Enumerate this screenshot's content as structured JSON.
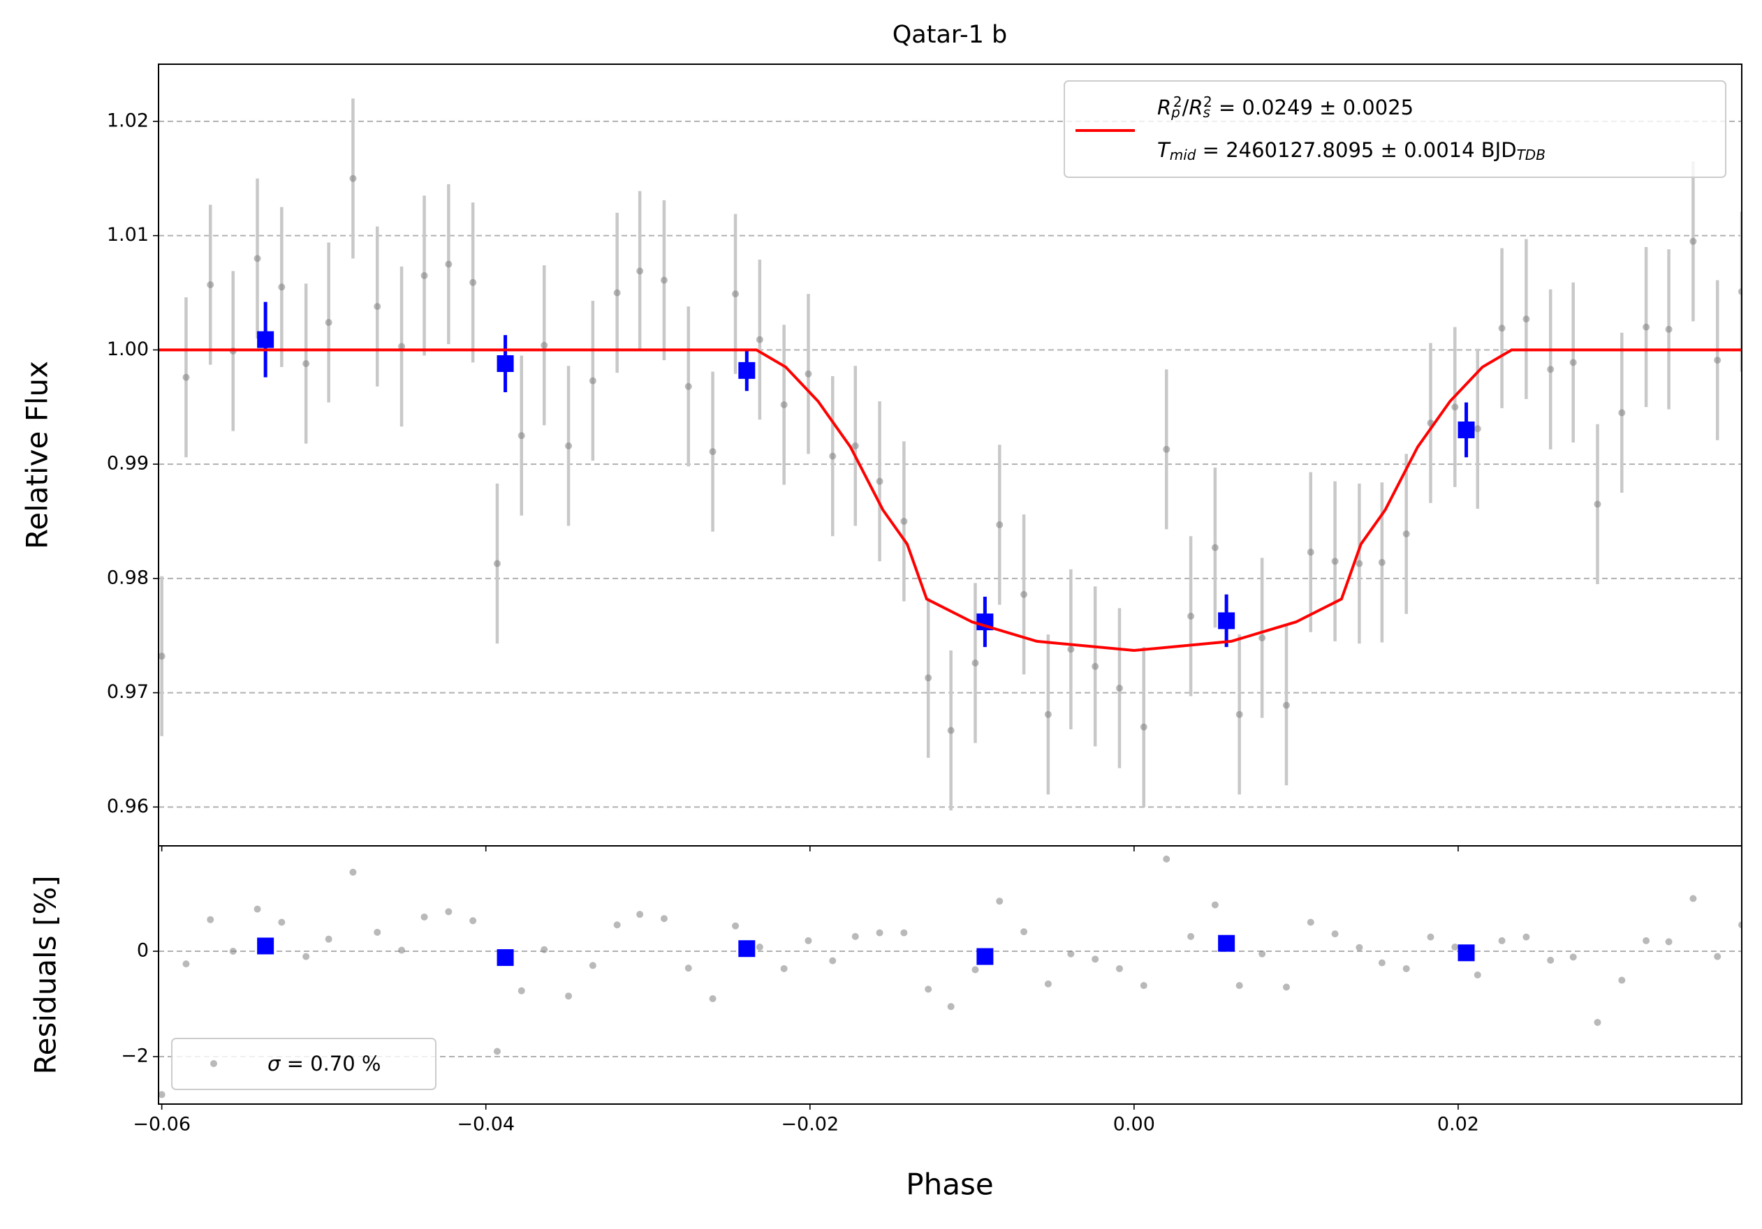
{
  "chart_data": [
    {
      "type": "errorbar",
      "title": "Qatar-1 b",
      "ylabel": "Relative Flux",
      "xlim": [
        -0.0602,
        0.0375
      ],
      "ylim": [
        0.9566,
        1.025
      ],
      "yticks": [
        0.96,
        0.97,
        0.98,
        0.99,
        {
          "value": 1.0,
          "label": "1.00"
        },
        1.01,
        1.02
      ],
      "grid": true,
      "legend": "upper right",
      "series": [
        {
          "mode": "points",
          "color": "#808080",
          "error": 0.007,
          "x": [
            -0.06,
            -0.0585,
            -0.057,
            -0.0556,
            -0.0541,
            -0.0526,
            -0.0511,
            -0.0497,
            -0.0482,
            -0.0467,
            -0.0452,
            -0.0438,
            -0.0423,
            -0.0408,
            -0.0393,
            -0.0378,
            -0.0364,
            -0.0349,
            -0.0334,
            -0.0319,
            -0.0305,
            -0.029,
            -0.0275,
            -0.026,
            -0.0246,
            -0.0231,
            -0.0216,
            -0.0201,
            -0.0186,
            -0.0172,
            -0.0157,
            -0.0142,
            -0.0127,
            -0.0113,
            -0.0098,
            -0.0083,
            -0.0068,
            -0.0053,
            -0.0039,
            -0.0024,
            -0.0009,
            0.0006,
            0.002,
            0.0035,
            0.005,
            0.0065,
            0.0079,
            0.0094,
            0.0109,
            0.0124,
            0.0139,
            0.0153,
            0.0168,
            0.0183,
            0.0198,
            0.0212,
            0.0227,
            0.0242,
            0.0257,
            0.0271,
            0.0286,
            0.0301,
            0.0316,
            0.033,
            0.0345,
            0.036,
            0.0375
          ],
          "values": [
            0.9732,
            0.9976,
            1.0057,
            0.9999,
            1.008,
            1.0055,
            0.9988,
            1.0024,
            1.015,
            1.0038,
            1.0003,
            1.0065,
            1.0075,
            1.0059,
            0.9813,
            0.9925,
            1.0004,
            0.9916,
            0.9973,
            1.005,
            1.0069,
            1.0061,
            0.9968,
            0.9911,
            1.0049,
            1.0009,
            0.9952,
            0.9979,
            0.9907,
            0.9916,
            0.9885,
            0.985,
            0.9713,
            0.9667,
            0.9726,
            0.9847,
            0.9786,
            0.9681,
            0.9738,
            0.9723,
            0.9704,
            0.967,
            0.9913,
            0.9767,
            0.9827,
            0.9681,
            0.9748,
            0.9689,
            0.9823,
            0.9815,
            0.9813,
            0.9814,
            0.9839,
            0.9936,
            0.995,
            0.9931,
            1.0019,
            1.0027,
            0.9983,
            0.9989,
            0.9865,
            0.9945,
            1.002,
            1.0018,
            1.0095,
            0.9991,
            1.0051
          ]
        },
        {
          "mode": "squares",
          "color": "#0000ff",
          "x": [
            -0.0536,
            -0.0388,
            -0.0239,
            -0.0092,
            0.0057,
            0.0205
          ],
          "values": [
            1.0009,
            0.9988,
            0.9982,
            0.9762,
            0.9763,
            0.993
          ],
          "errors": [
            0.0033,
            0.0025,
            0.0018,
            0.0022,
            0.0023,
            0.0024
          ]
        },
        {
          "mode": "line",
          "color": "#ff0000",
          "legend_lines": [
            [
              {
                "text": "R",
                "style": "italic"
              },
              {
                "text": "p",
                "style": "sub"
              },
              {
                "text": "2",
                "style": "sup"
              },
              {
                "text": "/",
                "style": ""
              },
              {
                "text": "R",
                "style": "italic"
              },
              {
                "text": "s",
                "style": "sub"
              },
              {
                "text": "2",
                "style": "sup"
              },
              {
                "text": " = 0.0249 ± 0.0025",
                "style": ""
              }
            ],
            [
              {
                "text": "T",
                "style": "italic"
              },
              {
                "text": "mid",
                "style": "sub"
              },
              {
                "text": " = 2460127.8095 ± 0.0014 BJD",
                "style": ""
              },
              {
                "text": "TDB",
                "style": "sub"
              }
            ]
          ],
          "x": [
            -0.0602,
            -0.0233,
            -0.0215,
            -0.0195,
            -0.0175,
            -0.0155,
            -0.014,
            -0.0128,
            -0.01,
            -0.006,
            0,
            0.006,
            0.01,
            0.0128,
            0.014,
            0.0155,
            0.0175,
            0.0195,
            0.0215,
            0.0233,
            0.0375
          ],
          "values": [
            1.0,
            1.0,
            0.9985,
            0.9955,
            0.9915,
            0.986,
            0.983,
            0.9782,
            0.9762,
            0.9745,
            0.9737,
            0.9745,
            0.9762,
            0.9782,
            0.983,
            0.986,
            0.9915,
            0.9955,
            0.9985,
            1.0,
            1.0
          ]
        }
      ]
    },
    {
      "type": "scatter",
      "ylabel": "Residuals [%]",
      "xlabel": "Phase",
      "xlim": [
        -0.0602,
        0.0375
      ],
      "ylim": [
        -2.9,
        2.0
      ],
      "xticks": [
        {
          "value": -0.06,
          "label": "−0.06"
        },
        {
          "value": -0.04,
          "label": "−0.04"
        },
        {
          "value": -0.02,
          "label": "−0.02"
        },
        {
          "value": 0.0,
          "label": "0.00"
        },
        0.02
      ],
      "yticks": [
        {
          "value": -2,
          "label": "−2"
        },
        0
      ],
      "grid": true,
      "legend": "lower left",
      "series": [
        {
          "mode": "points",
          "color": "#808080",
          "legend_lines": [
            [
              {
                "text": "σ",
                "style": "italic"
              },
              {
                "text": " = 0.70 %",
                "style": ""
              }
            ]
          ],
          "x": [
            -0.06,
            -0.0585,
            -0.057,
            -0.0556,
            -0.0541,
            -0.0526,
            -0.0511,
            -0.0497,
            -0.0482,
            -0.0467,
            -0.0452,
            -0.0438,
            -0.0423,
            -0.0408,
            -0.0393,
            -0.0378,
            -0.0364,
            -0.0349,
            -0.0334,
            -0.0319,
            -0.0305,
            -0.029,
            -0.0275,
            -0.026,
            -0.0246,
            -0.0231,
            -0.0216,
            -0.0201,
            -0.0186,
            -0.0172,
            -0.0157,
            -0.0142,
            -0.0127,
            -0.0113,
            -0.0098,
            -0.0083,
            -0.0068,
            -0.0053,
            -0.0039,
            -0.0024,
            -0.0009,
            0.0006,
            0.002,
            0.0035,
            0.005,
            0.0065,
            0.0079,
            0.0094,
            0.0109,
            0.0124,
            0.0139,
            0.0153,
            0.0168,
            0.0183,
            0.0198,
            0.0212,
            0.0227,
            0.0242,
            0.0257,
            0.0271,
            0.0286,
            0.0301,
            0.0316,
            0.033,
            0.0345,
            0.036,
            0.0375
          ],
          "values": [
            -2.72,
            -0.24,
            0.6,
            0.0,
            0.8,
            0.55,
            -0.1,
            0.23,
            1.5,
            0.36,
            0.02,
            0.65,
            0.75,
            0.58,
            -1.9,
            -0.75,
            0.03,
            -0.85,
            -0.27,
            0.5,
            0.7,
            0.62,
            -0.32,
            -0.9,
            0.48,
            0.08,
            -0.33,
            0.2,
            -0.18,
            0.28,
            0.35,
            0.35,
            -0.72,
            -1.05,
            -0.35,
            0.95,
            0.37,
            -0.62,
            -0.05,
            -0.15,
            -0.33,
            -0.65,
            1.75,
            0.28,
            0.88,
            -0.65,
            -0.05,
            -0.68,
            0.55,
            0.33,
            0.07,
            -0.22,
            -0.33,
            0.27,
            0.08,
            -0.45,
            0.2,
            0.27,
            -0.17,
            -0.11,
            -1.35,
            -0.55,
            0.2,
            0.18,
            1.0,
            -0.1,
            0.5
          ]
        },
        {
          "mode": "squares",
          "color": "#0000ff",
          "x": [
            -0.0536,
            -0.0388,
            -0.0239,
            -0.0092,
            0.0057,
            0.0205
          ],
          "values": [
            0.1,
            -0.12,
            0.05,
            -0.1,
            0.15,
            -0.03
          ]
        }
      ]
    }
  ]
}
